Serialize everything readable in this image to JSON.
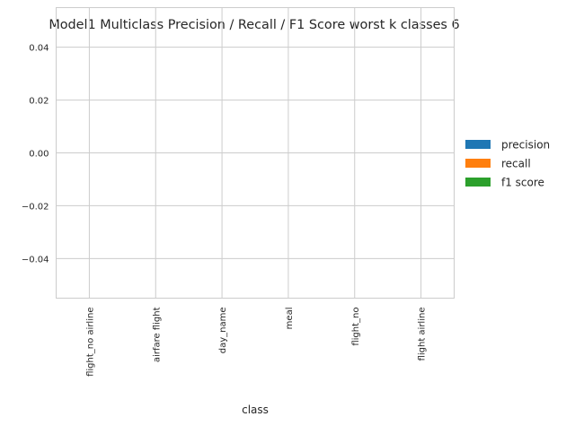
{
  "chart_data": {
    "type": "bar",
    "title": "Model1 Multiclass Precision / Recall / F1 Score worst k classes 6",
    "xlabel": "class",
    "ylabel": "",
    "categories": [
      "flight_no airline",
      "airfare flight",
      "day_name",
      "meal",
      "flight_no",
      "flight airline"
    ],
    "series": [
      {
        "name": "precision",
        "values": [
          0,
          0,
          0,
          0,
          0,
          0
        ],
        "color": "#1f77b4"
      },
      {
        "name": "recall",
        "values": [
          0,
          0,
          0,
          0,
          0,
          0
        ],
        "color": "#ff7f0e"
      },
      {
        "name": "f1 score",
        "values": [
          0,
          0,
          0,
          0,
          0,
          0
        ],
        "color": "#2ca02c"
      }
    ],
    "ylim": [
      -0.055,
      0.055
    ],
    "yticks": [
      "−0.04",
      "−0.02",
      "0.00",
      "0.02",
      "0.04"
    ],
    "ytick_values": [
      -0.04,
      -0.02,
      0.0,
      0.02,
      0.04
    ],
    "grid": true,
    "legend_position": "center-right"
  }
}
